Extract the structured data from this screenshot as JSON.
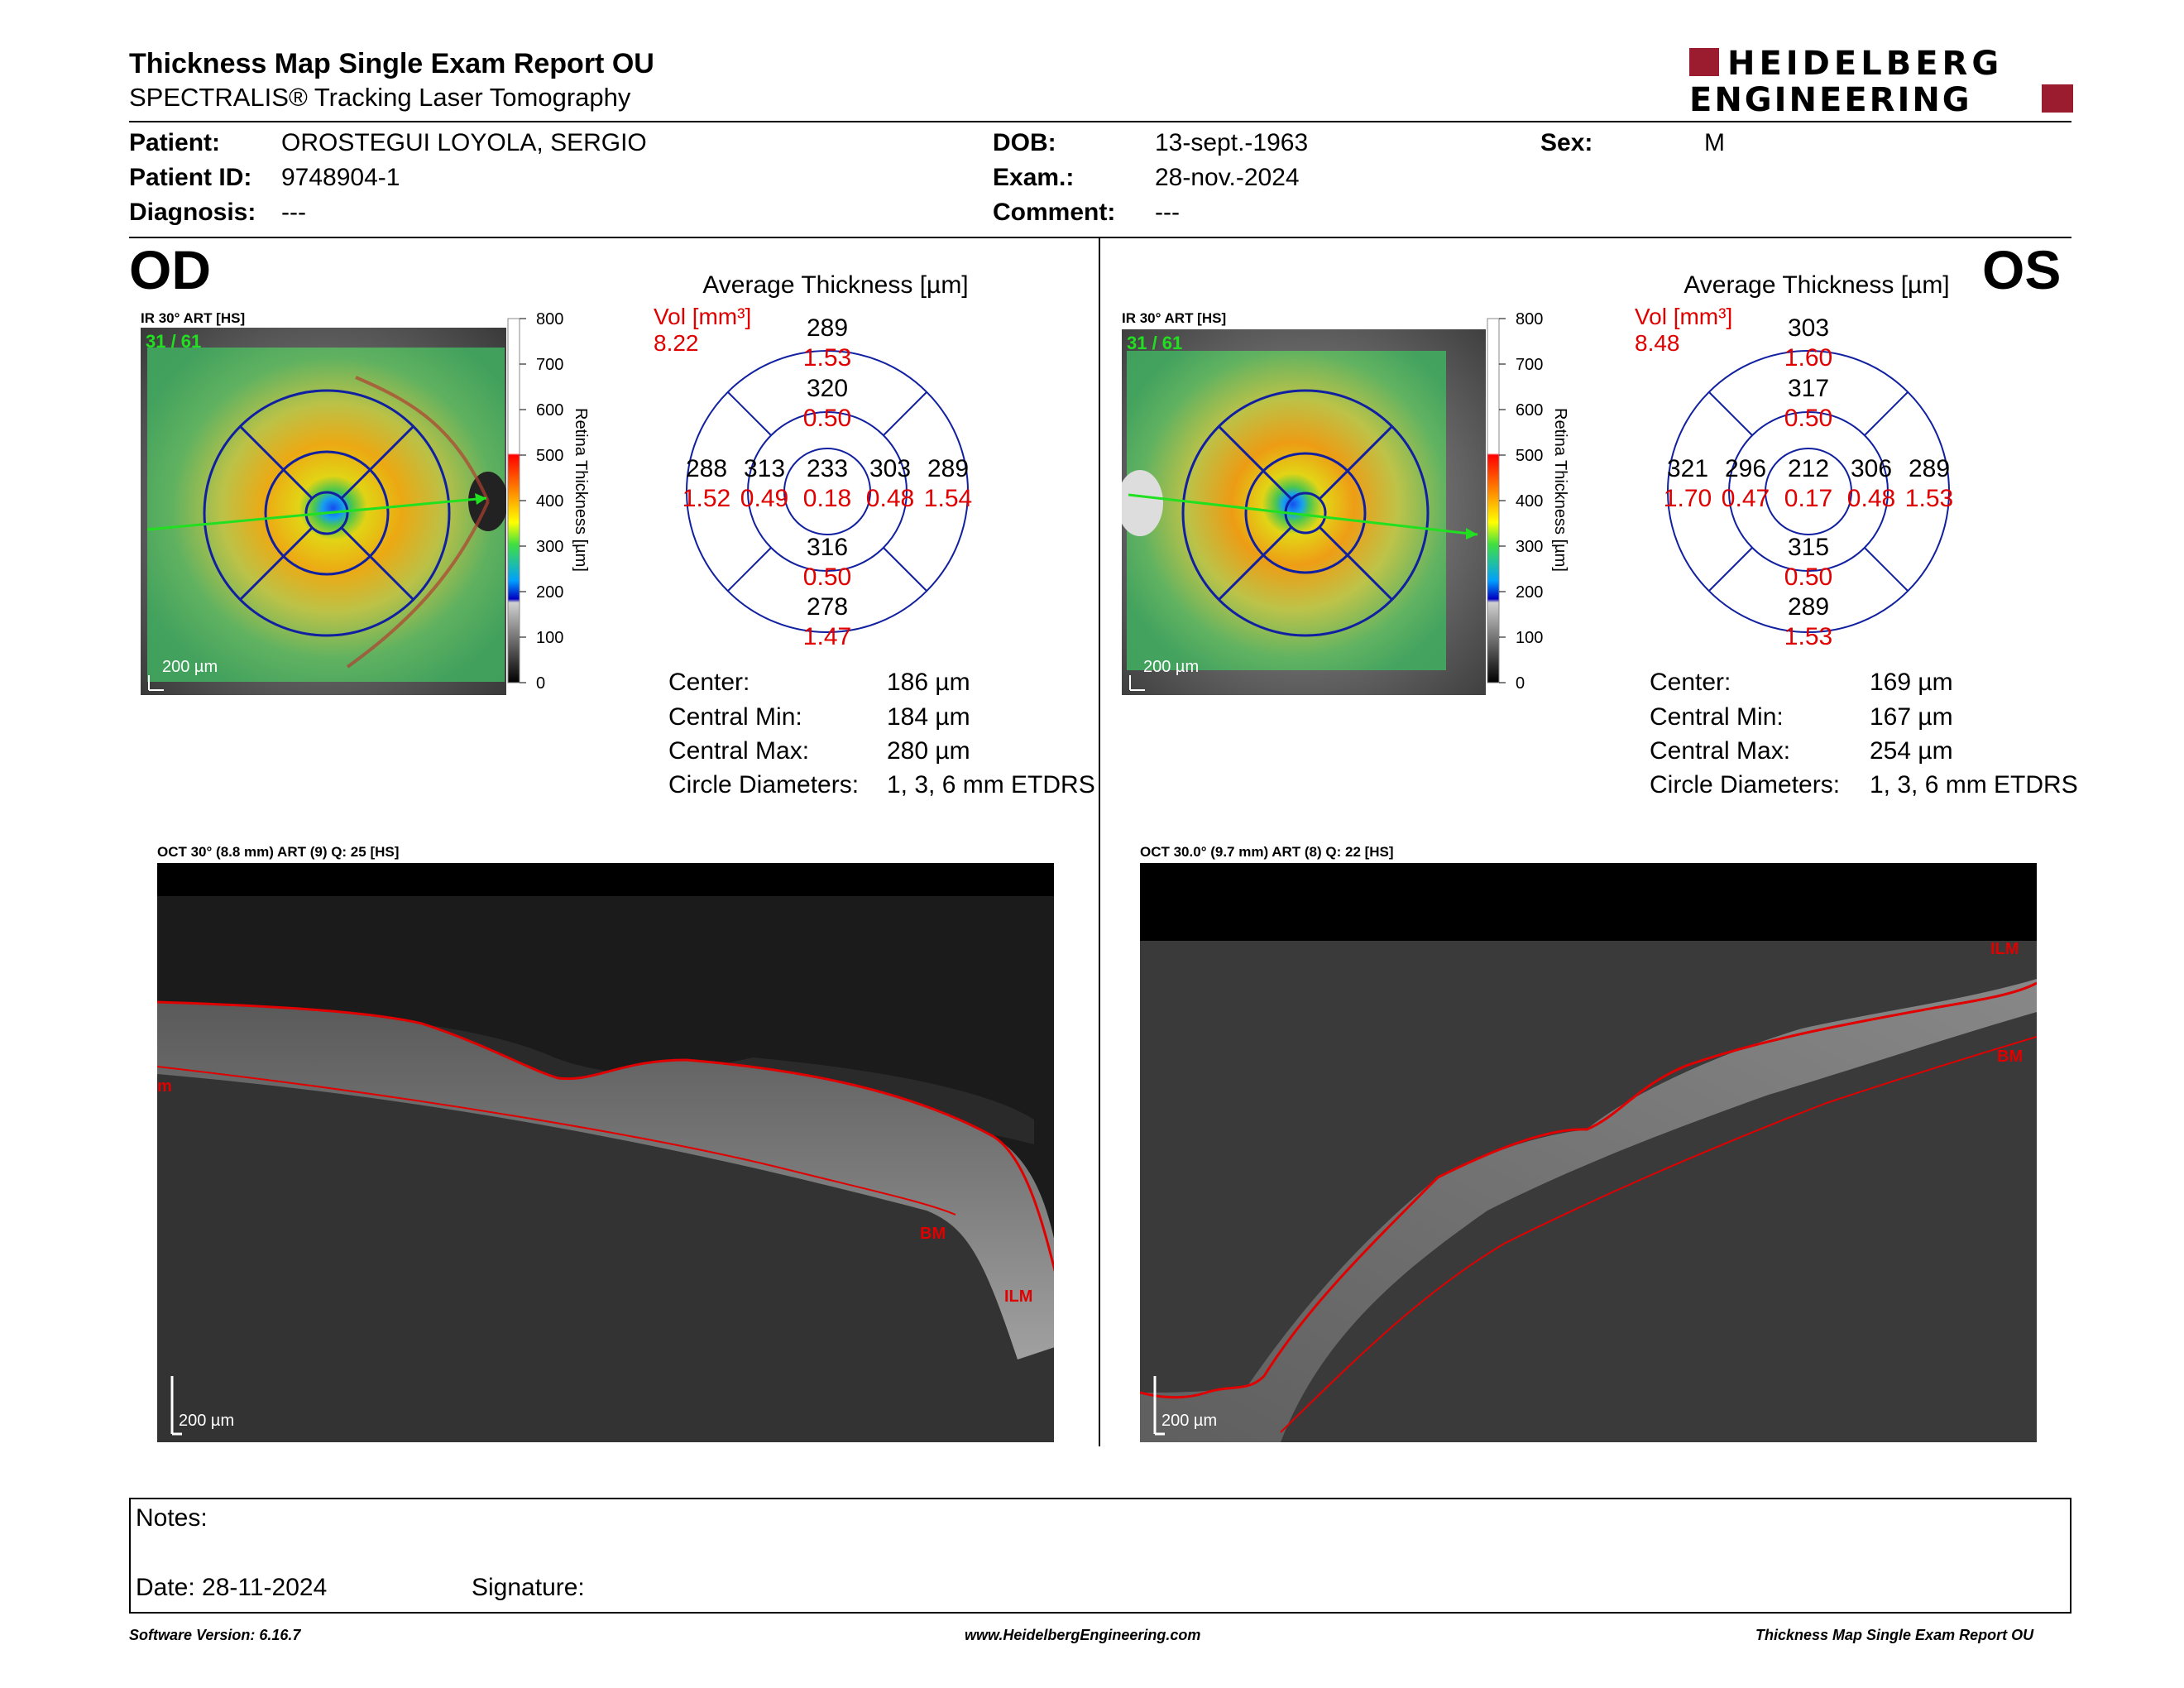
{
  "header": {
    "title": "Thickness Map Single Exam Report OU",
    "subtitle": "SPECTRALIS® Tracking Laser Tomography",
    "logo_line1": "HEIDELBERG",
    "logo_line2": "ENGINEERING",
    "brand_color": "#9b1c2e"
  },
  "patient": {
    "patient_label": "Patient:",
    "patient_value": "OROSTEGUI LOYOLA, SERGIO",
    "id_label": "Patient ID:",
    "id_value": "9748904-1",
    "diagnosis_label": "Diagnosis:",
    "diagnosis_value": "---",
    "dob_label": "DOB:",
    "dob_value": "13-sept.-1963",
    "exam_label": "Exam.:",
    "exam_value": "28-nov.-2024",
    "comment_label": "Comment:",
    "comment_value": "---",
    "sex_label": "Sex:",
    "sex_value": "M"
  },
  "scale": {
    "ticks": [
      "800",
      "700",
      "600",
      "500",
      "400",
      "300",
      "200",
      "100",
      "0"
    ],
    "axis_label": "Retina Thickness [µm]"
  },
  "od": {
    "eye_label": "OD",
    "fundus_label": "IR 30° ART [HS]",
    "frame_label": "31 / 61",
    "fundus_scale": "200 µm",
    "avg_title": "Average Thickness [µm]",
    "vol_label": "Vol [mm³]",
    "vol_value": "8.22",
    "center_thick": "233",
    "center_vol": "0.18",
    "inner_sup_thick": "320",
    "inner_sup_vol": "0.50",
    "inner_inf_thick": "316",
    "inner_inf_vol": "0.50",
    "inner_left_thick": "313",
    "inner_left_vol": "0.49",
    "inner_right_thick": "303",
    "inner_right_vol": "0.48",
    "outer_sup_thick": "289",
    "outer_sup_vol": "1.53",
    "outer_inf_thick": "278",
    "outer_inf_vol": "1.47",
    "outer_left_thick": "288",
    "outer_left_vol": "1.52",
    "outer_right_thick": "289",
    "outer_right_vol": "1.54",
    "center_label": "Center:",
    "center_value": "186 µm",
    "cmin_label": "Central Min:",
    "cmin_value": "184 µm",
    "cmax_label": "Central Max:",
    "cmax_value": "280 µm",
    "circ_label": "Circle Diameters:",
    "circ_value": "1, 3, 6 mm ETDRS",
    "oct_label": "OCT 30° (8.8 mm) ART (9) Q: 25 [HS]",
    "oct_scale": "200 µm",
    "seg_bm": "BM",
    "seg_ilm": "ILM",
    "seg_m": "m"
  },
  "os": {
    "eye_label": "OS",
    "fundus_label": "IR 30° ART [HS]",
    "frame_label": "31 / 61",
    "fundus_scale": "200 µm",
    "avg_title": "Average Thickness [µm]",
    "vol_label": "Vol [mm³]",
    "vol_value": "8.48",
    "center_thick": "212",
    "center_vol": "0.17",
    "inner_sup_thick": "317",
    "inner_sup_vol": "0.50",
    "inner_inf_thick": "315",
    "inner_inf_vol": "0.50",
    "inner_left_thick": "296",
    "inner_left_vol": "0.47",
    "inner_right_thick": "306",
    "inner_right_vol": "0.48",
    "outer_sup_thick": "303",
    "outer_sup_vol": "1.60",
    "outer_inf_thick": "289",
    "outer_inf_vol": "1.53",
    "outer_left_thick": "321",
    "outer_left_vol": "1.70",
    "outer_right_thick": "289",
    "outer_right_vol": "1.53",
    "center_label": "Center:",
    "center_value": "169 µm",
    "cmin_label": "Central Min:",
    "cmin_value": "167 µm",
    "cmax_label": "Central Max:",
    "cmax_value": "254 µm",
    "circ_label": "Circle Diameters:",
    "circ_value": "1, 3, 6 mm ETDRS",
    "oct_label": "OCT 30.0° (9.7 mm) ART (8) Q: 22 [HS]",
    "oct_scale": "200 µm",
    "seg_bm": "BM",
    "seg_ilm": "ILM"
  },
  "notes": {
    "notes_label": "Notes:",
    "date_label": "Date: 28-11-2024",
    "signature_label": "Signature:"
  },
  "footer": {
    "software": "Software Version: 6.16.7",
    "website": "www.HeidelbergEngineering.com",
    "report": "Thickness Map Single Exam Report OU"
  }
}
